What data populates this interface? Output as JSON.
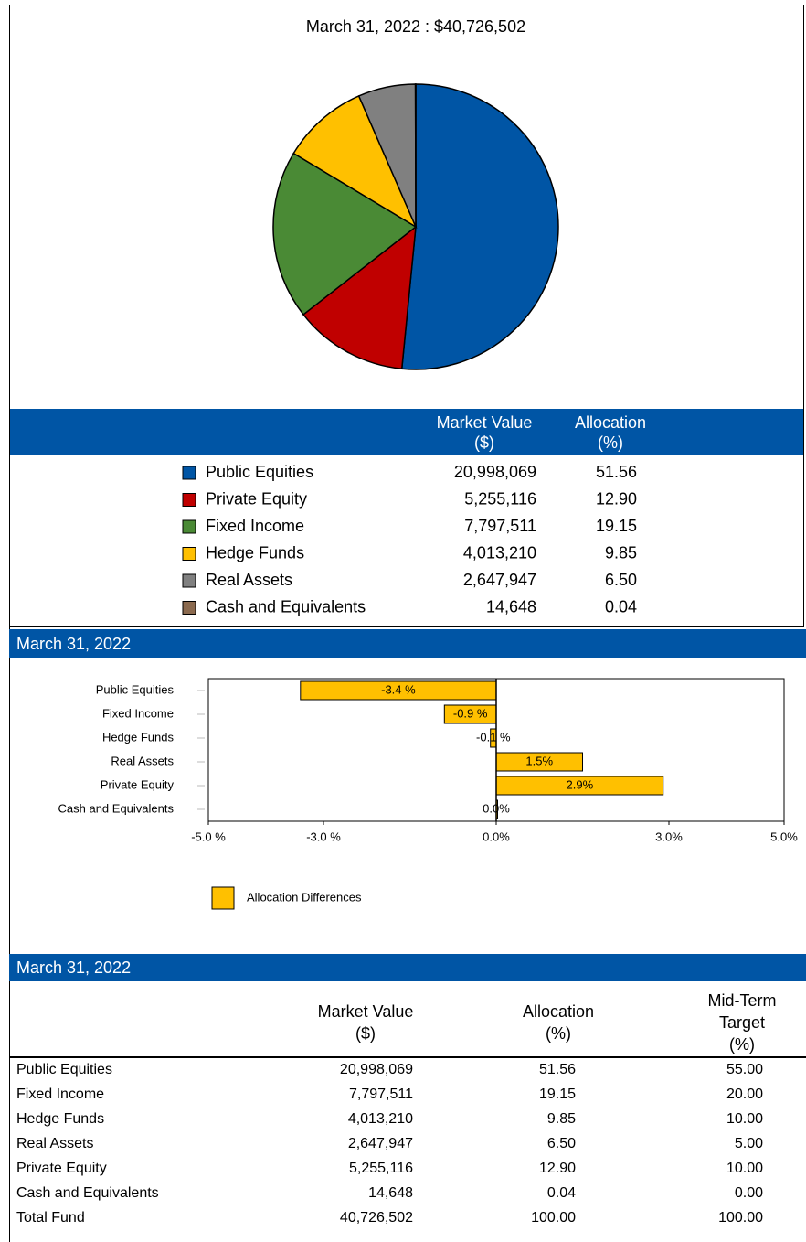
{
  "chart_data": [
    {
      "type": "pie",
      "title": "March 31, 2022 : $40,726,502",
      "categories": [
        "Public Equities",
        "Private Equity",
        "Fixed Income",
        "Hedge Funds",
        "Real Assets",
        "Cash and Equivalents"
      ],
      "values": [
        51.56,
        12.9,
        19.15,
        9.85,
        6.5,
        0.04
      ],
      "value_labels": [
        "51.56",
        "12.90",
        "19.15",
        "9.85",
        "6.50",
        "0.04"
      ],
      "colors": [
        "#0055a5",
        "#c00000",
        "#4a8a35",
        "#ffc000",
        "#808080",
        "#8b6a4f"
      ],
      "market_values": [
        "20,998,069",
        "5,255,116",
        "7,797,511",
        "4,013,210",
        "2,647,947",
        "14,648"
      ],
      "table_headers": [
        [
          "Market Value",
          "($)"
        ],
        [
          "Allocation",
          "(%)"
        ]
      ]
    },
    {
      "type": "bar",
      "orientation": "horizontal",
      "title": "March 31, 2022",
      "categories": [
        "Public Equities",
        "Fixed Income",
        "Hedge Funds",
        "Real Assets",
        "Private Equity",
        "Cash and Equivalents"
      ],
      "series": [
        {
          "name": "Allocation Differences",
          "color": "#ffc000",
          "values": [
            -3.4,
            -0.9,
            -0.1,
            1.5,
            2.9,
            0.0
          ]
        }
      ],
      "value_labels": [
        "-3.4 %",
        "-0.9 %",
        "-0.1 %",
        "1.5%",
        "2.9%",
        "0.0%"
      ],
      "xlim": [
        -5,
        5
      ],
      "xticks": [
        {
          "value": -5,
          "label": "-5.0 %"
        },
        {
          "value": -3,
          "label": "-3.0 %"
        },
        {
          "value": 0,
          "label": "0.0%"
        },
        {
          "value": 3,
          "label": "3.0%"
        },
        {
          "value": 5,
          "label": "5.0%"
        }
      ]
    }
  ],
  "table": {
    "title": "March 31, 2022",
    "headers": [
      [
        "Market Value",
        "($)"
      ],
      [
        "Allocation",
        "(%)"
      ],
      [
        "Mid-Term",
        "Target",
        "(%)"
      ]
    ],
    "rows": [
      [
        "Public Equities",
        "20,998,069",
        "51.56",
        "55.00"
      ],
      [
        "Fixed Income",
        "7,797,511",
        "19.15",
        "20.00"
      ],
      [
        "Hedge Funds",
        "4,013,210",
        "9.85",
        "10.00"
      ],
      [
        "Real Assets",
        "2,647,947",
        "6.50",
        "5.00"
      ],
      [
        "Private Equity",
        "5,255,116",
        "12.90",
        "10.00"
      ],
      [
        "Cash and Equivalents",
        "14,648",
        "0.04",
        "0.00"
      ],
      [
        "Total Fund",
        "40,726,502",
        "100.00",
        "100.00"
      ]
    ]
  }
}
